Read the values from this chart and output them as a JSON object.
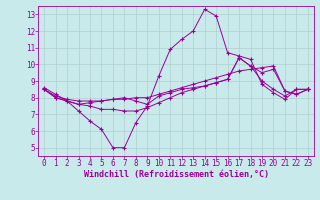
{
  "xlabel": "Windchill (Refroidissement éolien,°C)",
  "ylabel": "",
  "background_color": "#c8eaea",
  "grid_color": "#b0cece",
  "line_color": "#990099",
  "xlim": [
    -0.5,
    23.5
  ],
  "ylim": [
    4.5,
    13.5
  ],
  "xticks": [
    0,
    1,
    2,
    3,
    4,
    5,
    6,
    7,
    8,
    9,
    10,
    11,
    12,
    13,
    14,
    15,
    16,
    17,
    18,
    19,
    20,
    21,
    22,
    23
  ],
  "yticks": [
    5,
    6,
    7,
    8,
    9,
    10,
    11,
    12,
    13
  ],
  "lines": [
    {
      "x": [
        0,
        1,
        2,
        3,
        4,
        5,
        6,
        7,
        8,
        9,
        10,
        11,
        12,
        13,
        14,
        15,
        16,
        17,
        18,
        19,
        20,
        21,
        22,
        23
      ],
      "y": [
        8.6,
        8.2,
        7.8,
        7.2,
        6.6,
        6.1,
        5.0,
        5.0,
        6.5,
        7.5,
        9.3,
        10.9,
        11.5,
        12.0,
        13.3,
        12.9,
        10.7,
        10.5,
        10.3,
        8.8,
        8.3,
        7.9,
        8.5,
        8.5
      ]
    },
    {
      "x": [
        0,
        1,
        2,
        3,
        4,
        5,
        6,
        7,
        8,
        9,
        10,
        11,
        12,
        13,
        14,
        15,
        16,
        17,
        18,
        19,
        20,
        21,
        22,
        23
      ],
      "y": [
        8.5,
        8.1,
        7.9,
        7.8,
        7.8,
        7.8,
        7.9,
        7.9,
        8.0,
        8.0,
        8.2,
        8.4,
        8.6,
        8.8,
        9.0,
        9.2,
        9.4,
        9.6,
        9.7,
        9.8,
        9.9,
        8.4,
        8.2,
        8.5
      ]
    },
    {
      "x": [
        0,
        1,
        2,
        3,
        4,
        5,
        6,
        7,
        8,
        9,
        10,
        11,
        12,
        13,
        14,
        15,
        16,
        17,
        18,
        19,
        20,
        21,
        22,
        23
      ],
      "y": [
        8.5,
        8.0,
        7.8,
        7.6,
        7.7,
        7.8,
        7.9,
        8.0,
        7.8,
        7.6,
        8.1,
        8.3,
        8.5,
        8.6,
        8.7,
        8.9,
        9.1,
        10.4,
        9.9,
        9.0,
        8.5,
        8.1,
        8.5,
        8.5
      ]
    },
    {
      "x": [
        0,
        1,
        2,
        3,
        4,
        5,
        6,
        7,
        8,
        9,
        10,
        11,
        12,
        13,
        14,
        15,
        16,
        17,
        18,
        19,
        20,
        21,
        22,
        23
      ],
      "y": [
        8.5,
        8.0,
        7.8,
        7.6,
        7.5,
        7.3,
        7.3,
        7.2,
        7.2,
        7.4,
        7.7,
        8.0,
        8.3,
        8.5,
        8.7,
        8.9,
        9.1,
        10.4,
        9.9,
        9.5,
        9.7,
        8.4,
        8.2,
        8.5
      ]
    }
  ]
}
